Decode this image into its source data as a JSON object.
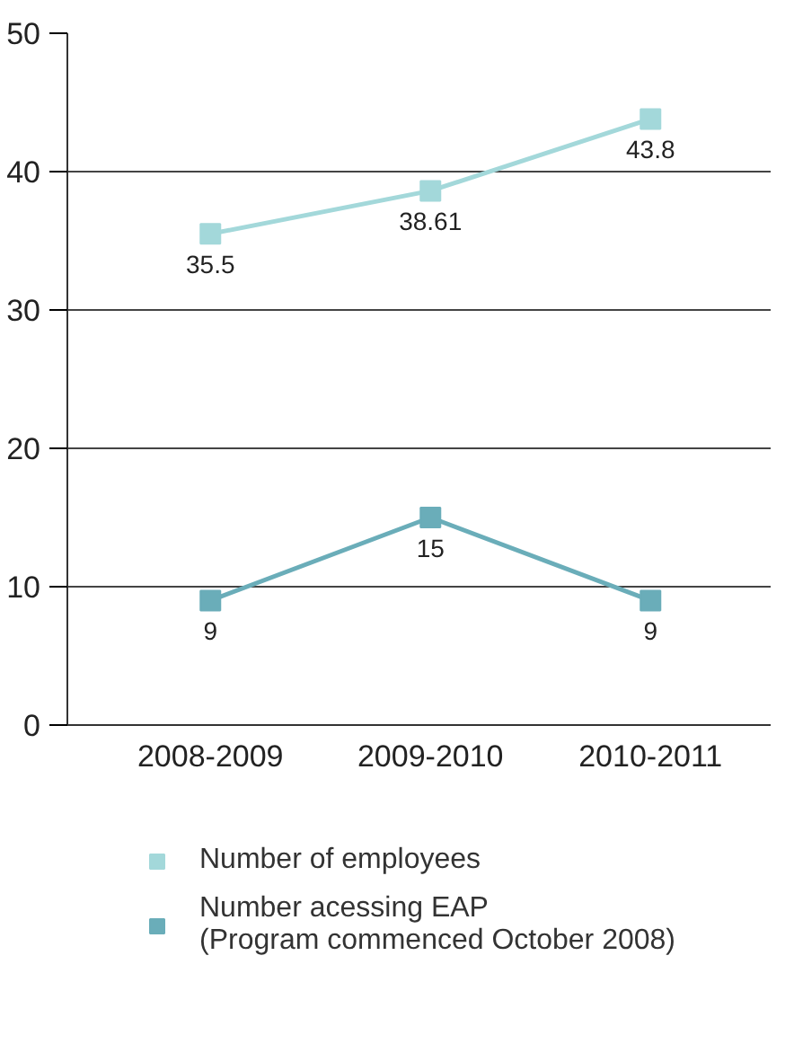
{
  "chart_data": {
    "type": "line",
    "categories": [
      "2008-2009",
      "2009-2010",
      "2010-2011"
    ],
    "series": [
      {
        "name": "Number of employees",
        "color": "#a3d8da",
        "values": [
          35.5,
          38.61,
          43.8
        ]
      },
      {
        "name": "Number acessing EAP\n(Program commenced October 2008)",
        "color": "#6aadb9",
        "values": [
          9,
          15,
          9
        ]
      }
    ],
    "ylim": [
      0,
      50
    ],
    "yticks": [
      0,
      10,
      20,
      30,
      40,
      50
    ],
    "grid": "y",
    "legend": "bottom",
    "marker": "square",
    "line_style": "solid",
    "data_labels": true
  }
}
